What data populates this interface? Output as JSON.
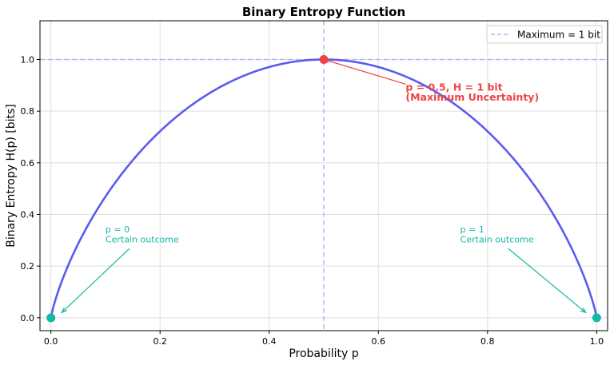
{
  "chart_data": {
    "type": "line",
    "title": "Binary Entropy Function",
    "xlabel": "Probability p",
    "ylabel": "Binary Entropy H(p) [bits]",
    "xlim": [
      -0.02,
      1.02
    ],
    "ylim": [
      -0.05,
      1.15
    ],
    "xticks": [
      "0.0",
      "0.2",
      "0.4",
      "0.6",
      "0.8",
      "1.0"
    ],
    "yticks": [
      "0.0",
      "0.2",
      "0.4",
      "0.6",
      "0.8",
      "1.0"
    ],
    "grid": true,
    "series": [
      {
        "function": "H(p) = -p log2 p - (1-p) log2 (1-p)",
        "x_range": [
          0,
          1
        ],
        "color": "#5b5bf0"
      }
    ],
    "reference_lines": [
      {
        "orientation": "horizontal",
        "y": 1.0,
        "label": "Maximum = 1 bit",
        "color": "#b4b8f0",
        "style": "dashed"
      },
      {
        "orientation": "vertical",
        "x": 0.5,
        "color": "#b4b8f0",
        "style": "dashed"
      }
    ],
    "points": [
      {
        "x": 0.5,
        "y": 1.0,
        "color": "#ef4444"
      },
      {
        "x": 0.0,
        "y": 0.0,
        "color": "#14b8a6"
      },
      {
        "x": 1.0,
        "y": 0.0,
        "color": "#14b8a6"
      }
    ],
    "annotations": [
      {
        "lines": [
          "p = 0.5, H = 1 bit",
          "(Maximum Uncertainty)"
        ],
        "color": "#ef4444",
        "bold": true,
        "xy": [
          0.5,
          1.0
        ],
        "text_xy": [
          0.65,
          0.88
        ]
      },
      {
        "lines": [
          "p = 0",
          "Certain outcome"
        ],
        "color": "#14b8a6",
        "xy": [
          0.02,
          0.02
        ],
        "text_xy": [
          0.1,
          0.33
        ]
      },
      {
        "lines": [
          "p = 1",
          "Certain outcome"
        ],
        "color": "#14b8a6",
        "xy": [
          0.98,
          0.02
        ],
        "text_xy": [
          0.75,
          0.33
        ]
      }
    ],
    "legend": {
      "placement": "top-right",
      "entries": [
        "Maximum = 1 bit"
      ]
    }
  }
}
